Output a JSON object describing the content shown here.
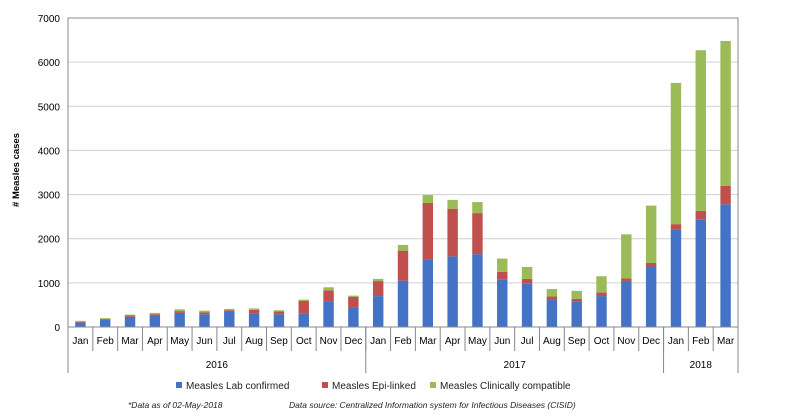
{
  "chart_data": {
    "type": "bar",
    "stacked": true,
    "ylabel": "# Measles cases",
    "ylim": [
      0,
      7000
    ],
    "yticks": [
      0,
      1000,
      2000,
      3000,
      4000,
      5000,
      6000,
      7000
    ],
    "grid": true,
    "legend_position": "bottom",
    "categories": [
      "Jan",
      "Feb",
      "Mar",
      "Apr",
      "May",
      "Jun",
      "Jul",
      "Aug",
      "Sep",
      "Oct",
      "Nov",
      "Dec",
      "Jan",
      "Feb",
      "Mar",
      "Apr",
      "May",
      "Jun",
      "Jul",
      "Aug",
      "Sep",
      "Oct",
      "Nov",
      "Dec",
      "Jan",
      "Feb",
      "Mar"
    ],
    "year_groups": [
      {
        "label": "2016",
        "start": 0,
        "end": 11
      },
      {
        "label": "2017",
        "start": 12,
        "end": 23
      },
      {
        "label": "2018",
        "start": 24,
        "end": 26
      }
    ],
    "series": [
      {
        "name": "Measles Lab confirmed",
        "color": "#4472C4",
        "values": [
          100,
          160,
          230,
          260,
          320,
          290,
          340,
          310,
          290,
          310,
          580,
          440,
          700,
          1050,
          1520,
          1600,
          1650,
          1070,
          980,
          610,
          580,
          700,
          1030,
          1370,
          2200,
          2430,
          2780
        ]
      },
      {
        "name": "Measles Epi-linked",
        "color": "#C0504D",
        "values": [
          20,
          20,
          30,
          30,
          40,
          40,
          40,
          80,
          60,
          280,
          250,
          240,
          340,
          680,
          1290,
          1080,
          930,
          180,
          110,
          80,
          60,
          80,
          70,
          80,
          130,
          200,
          420
        ]
      },
      {
        "name": "Measles Clinically compatible",
        "color": "#9BBB59",
        "values": [
          20,
          20,
          20,
          30,
          40,
          40,
          30,
          30,
          30,
          30,
          70,
          30,
          50,
          130,
          180,
          200,
          250,
          300,
          270,
          170,
          180,
          370,
          1000,
          1300,
          3200,
          3640,
          3280
        ]
      }
    ]
  },
  "footnote": "*Data as of 02-May-2018",
  "source": "Data source: Centralized Information system for Infectious Diseases (CISID)"
}
